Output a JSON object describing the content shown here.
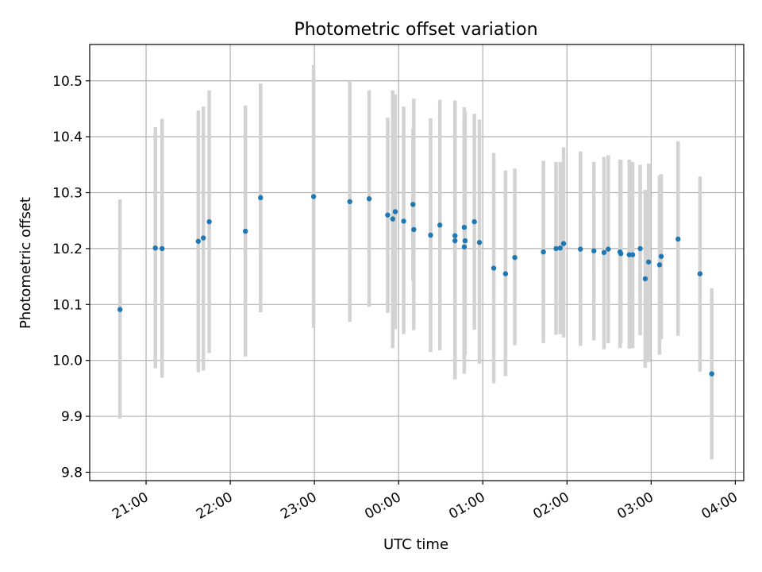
{
  "chart_data": {
    "type": "scatter",
    "title": "Photometric offset variation",
    "xlabel": "UTC time",
    "ylabel": "Photometric offset",
    "x_unit": "hours since 00:00 UTC",
    "xlim": [
      -3.67,
      4.1
    ],
    "ylim": [
      9.785,
      10.565
    ],
    "grid": true,
    "x_ticks": [
      {
        "value": -3,
        "label": "21:00"
      },
      {
        "value": -2,
        "label": "22:00"
      },
      {
        "value": -1,
        "label": "23:00"
      },
      {
        "value": 0,
        "label": "00:00"
      },
      {
        "value": 1,
        "label": "01:00"
      },
      {
        "value": 2,
        "label": "02:00"
      },
      {
        "value": 3,
        "label": "03:00"
      },
      {
        "value": 4,
        "label": "04:00"
      }
    ],
    "y_ticks": [
      {
        "value": 9.8,
        "label": "9.8"
      },
      {
        "value": 9.9,
        "label": "9.9"
      },
      {
        "value": 10.0,
        "label": "10.0"
      },
      {
        "value": 10.1,
        "label": "10.1"
      },
      {
        "value": 10.2,
        "label": "10.2"
      },
      {
        "value": 10.3,
        "label": "10.3"
      },
      {
        "value": 10.4,
        "label": "10.4"
      },
      {
        "value": 10.5,
        "label": "10.5"
      }
    ],
    "colors": {
      "point": "#1f77b4",
      "error_bar": "#d3d3d3"
    },
    "points": [
      {
        "x": -3.31,
        "y": 10.091,
        "lo": 9.896,
        "hi": 10.288
      },
      {
        "x": -2.89,
        "y": 10.201,
        "lo": 9.986,
        "hi": 10.417
      },
      {
        "x": -2.81,
        "y": 10.2,
        "lo": 9.969,
        "hi": 10.432
      },
      {
        "x": -2.38,
        "y": 10.213,
        "lo": 9.979,
        "hi": 10.447
      },
      {
        "x": -2.32,
        "y": 10.219,
        "lo": 9.982,
        "hi": 10.454
      },
      {
        "x": -2.25,
        "y": 10.248,
        "lo": 10.013,
        "hi": 10.483
      },
      {
        "x": -1.82,
        "y": 10.231,
        "lo": 10.007,
        "hi": 10.456
      },
      {
        "x": -1.64,
        "y": 10.291,
        "lo": 10.086,
        "hi": 10.495
      },
      {
        "x": -1.01,
        "y": 10.293,
        "lo": 10.058,
        "hi": 10.528
      },
      {
        "x": -0.58,
        "y": 10.284,
        "lo": 10.069,
        "hi": 10.5
      },
      {
        "x": -0.35,
        "y": 10.289,
        "lo": 10.096,
        "hi": 10.483
      },
      {
        "x": -0.13,
        "y": 10.26,
        "lo": 10.085,
        "hi": 10.434
      },
      {
        "x": -0.07,
        "y": 10.253,
        "lo": 10.022,
        "hi": 10.483
      },
      {
        "x": -0.04,
        "y": 10.266,
        "lo": 10.056,
        "hi": 10.476
      },
      {
        "x": 0.06,
        "y": 10.249,
        "lo": 10.047,
        "hi": 10.454
      },
      {
        "x": 0.17,
        "y": 10.279,
        "lo": 10.142,
        "hi": 10.415
      },
      {
        "x": 0.18,
        "y": 10.234,
        "lo": 10.054,
        "hi": 10.468
      },
      {
        "x": 0.38,
        "y": 10.224,
        "lo": 10.015,
        "hi": 10.433
      },
      {
        "x": 0.49,
        "y": 10.242,
        "lo": 10.018,
        "hi": 10.466
      },
      {
        "x": 0.67,
        "y": 10.223,
        "lo": 9.966,
        "hi": 10.465
      },
      {
        "x": 0.67,
        "y": 10.214,
        "lo": 9.979,
        "hi": 10.46
      },
      {
        "x": 0.78,
        "y": 10.203,
        "lo": 9.992,
        "hi": 10.431
      },
      {
        "x": 0.78,
        "y": 10.238,
        "lo": 9.976,
        "hi": 10.453
      },
      {
        "x": 0.79,
        "y": 10.214,
        "lo": 10.01,
        "hi": 10.445
      },
      {
        "x": 0.9,
        "y": 10.248,
        "lo": 10.055,
        "hi": 10.441
      },
      {
        "x": 0.96,
        "y": 10.211,
        "lo": 9.994,
        "hi": 10.431
      },
      {
        "x": 1.13,
        "y": 10.165,
        "lo": 9.959,
        "hi": 10.371
      },
      {
        "x": 1.27,
        "y": 10.155,
        "lo": 9.972,
        "hi": 10.34
      },
      {
        "x": 1.38,
        "y": 10.184,
        "lo": 10.027,
        "hi": 10.343
      },
      {
        "x": 1.72,
        "y": 10.194,
        "lo": 10.031,
        "hi": 10.357
      },
      {
        "x": 1.87,
        "y": 10.2,
        "lo": 10.046,
        "hi": 10.355
      },
      {
        "x": 1.92,
        "y": 10.201,
        "lo": 10.047,
        "hi": 10.355
      },
      {
        "x": 1.96,
        "y": 10.209,
        "lo": 10.041,
        "hi": 10.381
      },
      {
        "x": 2.16,
        "y": 10.199,
        "lo": 10.026,
        "hi": 10.374
      },
      {
        "x": 2.32,
        "y": 10.196,
        "lo": 10.036,
        "hi": 10.355
      },
      {
        "x": 2.44,
        "y": 10.193,
        "lo": 10.02,
        "hi": 10.364
      },
      {
        "x": 2.49,
        "y": 10.199,
        "lo": 10.031,
        "hi": 10.367
      },
      {
        "x": 2.63,
        "y": 10.194,
        "lo": 10.022,
        "hi": 10.359
      },
      {
        "x": 2.64,
        "y": 10.191,
        "lo": 10.03,
        "hi": 10.358
      },
      {
        "x": 2.74,
        "y": 10.189,
        "lo": 10.021,
        "hi": 10.359
      },
      {
        "x": 2.78,
        "y": 10.189,
        "lo": 10.022,
        "hi": 10.355
      },
      {
        "x": 2.87,
        "y": 10.2,
        "lo": 10.045,
        "hi": 10.35
      },
      {
        "x": 2.93,
        "y": 10.146,
        "lo": 9.987,
        "hi": 10.305
      },
      {
        "x": 2.97,
        "y": 10.176,
        "lo": 9.997,
        "hi": 10.352
      },
      {
        "x": 3.1,
        "y": 10.171,
        "lo": 10.01,
        "hi": 10.331
      },
      {
        "x": 3.12,
        "y": 10.186,
        "lo": 10.038,
        "hi": 10.333
      },
      {
        "x": 3.32,
        "y": 10.217,
        "lo": 10.044,
        "hi": 10.392
      },
      {
        "x": 3.58,
        "y": 10.155,
        "lo": 9.98,
        "hi": 10.329
      },
      {
        "x": 3.72,
        "y": 9.976,
        "lo": 9.823,
        "hi": 10.129
      }
    ]
  }
}
